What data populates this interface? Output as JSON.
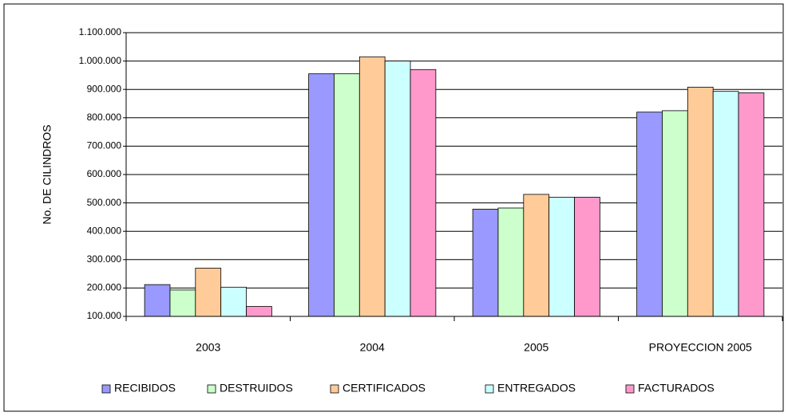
{
  "chart_data": {
    "type": "bar",
    "y_label": "No. DE CILINDROS",
    "categories": [
      "2003",
      "2004",
      "2005",
      "PROYECCION 2005"
    ],
    "series": [
      {
        "name": "RECIBIDOS",
        "color": "#9999ff",
        "values": [
          212000,
          955000,
          478000,
          820000
        ]
      },
      {
        "name": "DESTRUIDOS",
        "color": "#ccffcc",
        "values": [
          193000,
          955000,
          482000,
          825000
        ]
      },
      {
        "name": "CERTIFICADOS",
        "color": "#ffcc99",
        "values": [
          270000,
          1015000,
          530000,
          908000
        ]
      },
      {
        "name": "ENTREGADOS",
        "color": "#ccffff",
        "values": [
          203000,
          1000000,
          520000,
          893000
        ]
      },
      {
        "name": "FACTURADOS",
        "color": "#ff99cc",
        "values": [
          135000,
          970000,
          520000,
          888000
        ]
      }
    ],
    "ylim": [
      100000,
      1100000
    ],
    "yticks": [
      {
        "value": 100000,
        "label": "100.000"
      },
      {
        "value": 200000,
        "label": "200.000"
      },
      {
        "value": 300000,
        "label": "300.000"
      },
      {
        "value": 400000,
        "label": "400.000"
      },
      {
        "value": 500000,
        "label": "500.000"
      },
      {
        "value": 600000,
        "label": "600.000"
      },
      {
        "value": 700000,
        "label": "700.000"
      },
      {
        "value": 800000,
        "label": "800.000"
      },
      {
        "value": 900000,
        "label": "900.000"
      },
      {
        "value": 1000000,
        "label": "1.000.000"
      },
      {
        "value": 1100000,
        "label": "1.100.000"
      }
    ],
    "grid": true,
    "legend": "bottom"
  }
}
